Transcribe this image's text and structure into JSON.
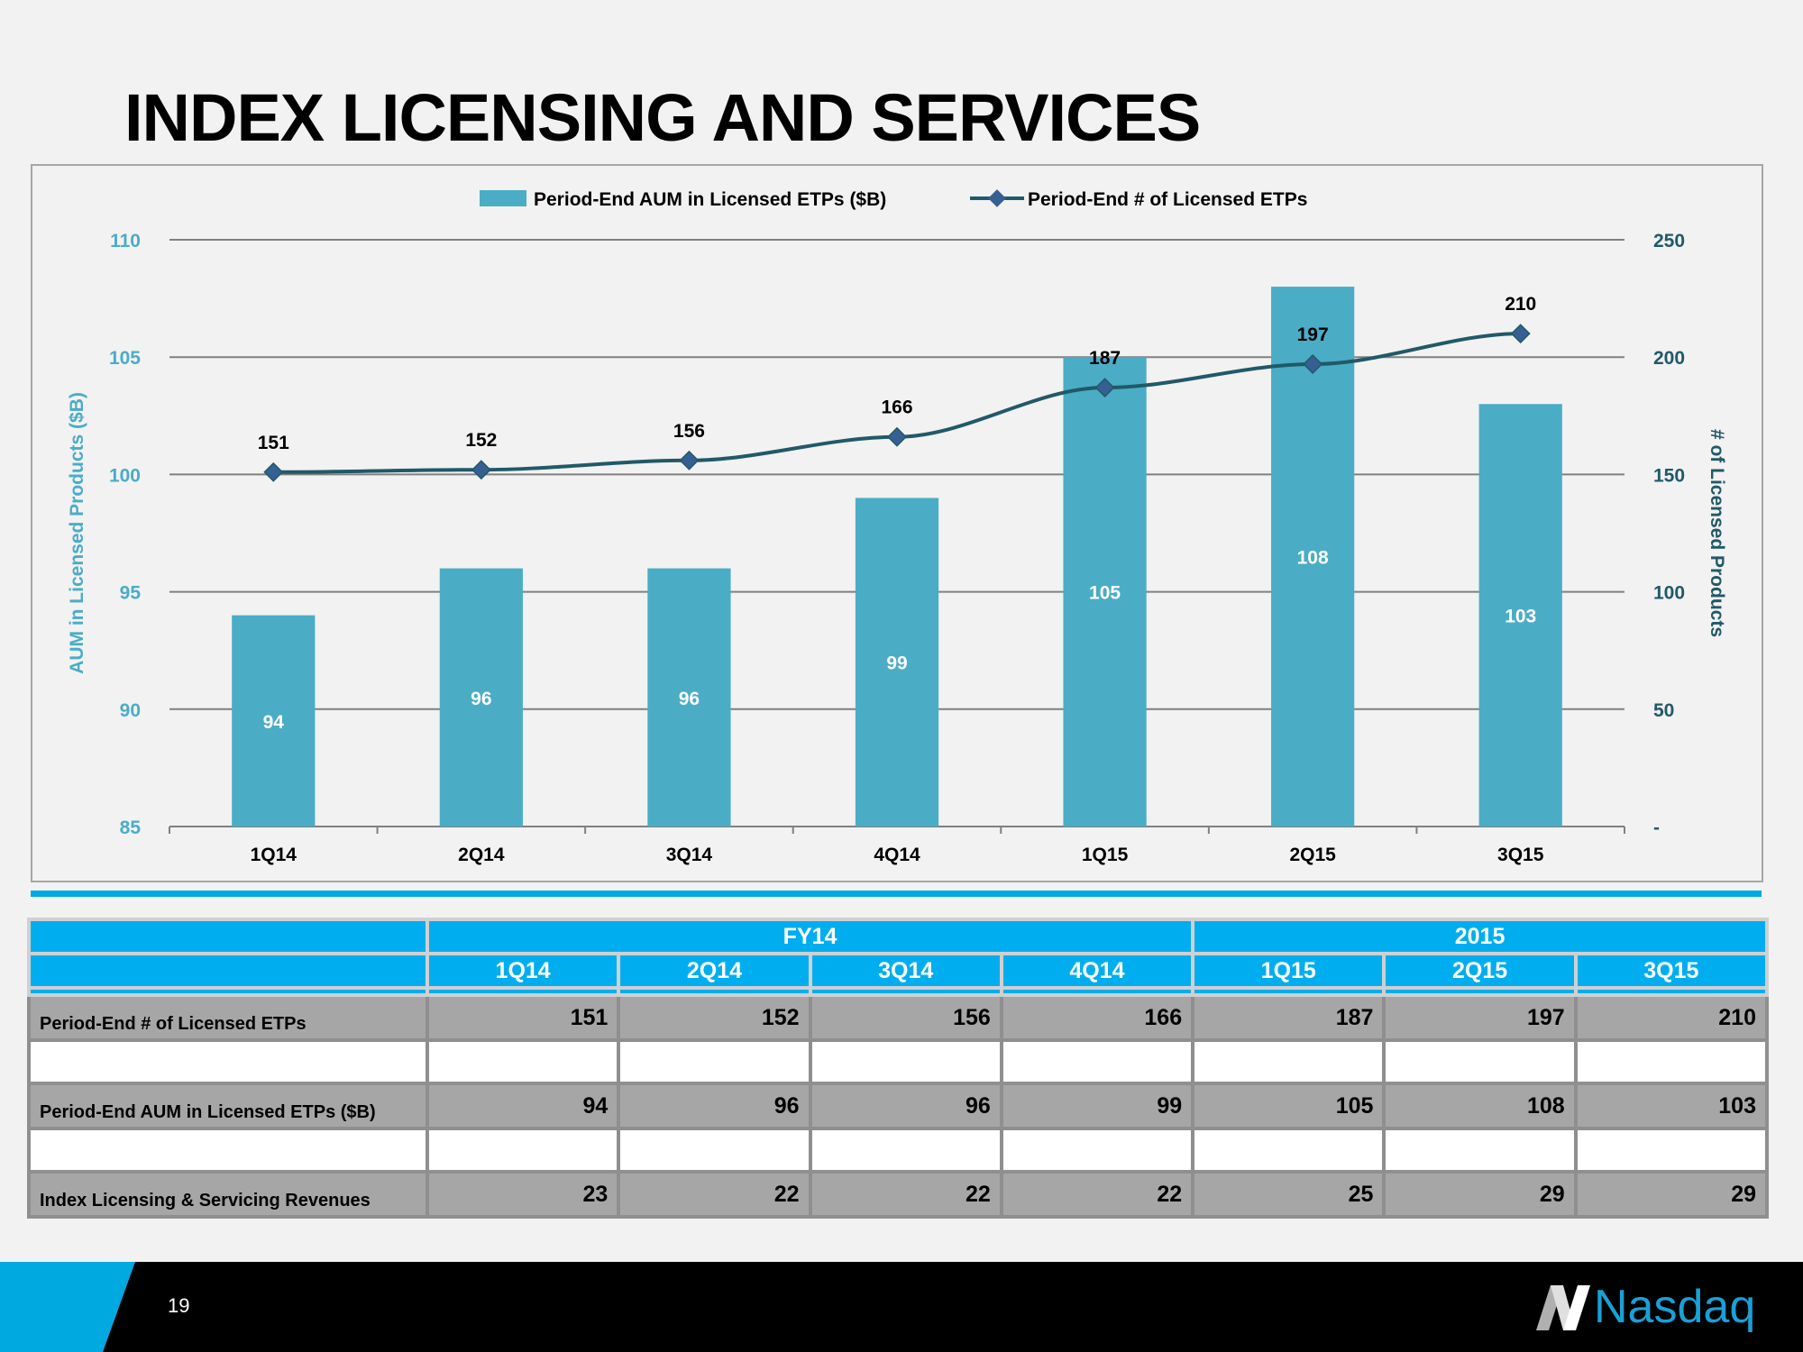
{
  "page": {
    "title": "INDEX LICENSING AND SERVICES",
    "page_number": "19",
    "logo_text": "Nasdaq"
  },
  "colors": {
    "bar": "#4bacc6",
    "line": "#215968",
    "marker": "#366092",
    "left_axis": "#4bacc6",
    "right_axis": "#215968",
    "table_header": "#00aeef",
    "table_row": "#a6a6a6",
    "accent": "#00a9e0"
  },
  "chart_data": {
    "type": "bar",
    "categories": [
      "1Q14",
      "2Q14",
      "3Q14",
      "4Q14",
      "1Q15",
      "2Q15",
      "3Q15"
    ],
    "series": [
      {
        "name": "Period-End AUM in Licensed ETPs ($B)",
        "type": "bar",
        "axis": "left",
        "values": [
          94,
          96,
          96,
          99,
          105,
          108,
          103
        ]
      },
      {
        "name": "Period-End # of Licensed ETPs",
        "type": "line",
        "axis": "right",
        "values": [
          151,
          152,
          156,
          166,
          187,
          197,
          210
        ]
      }
    ],
    "ylabel": "AUM in Licensed Products ($B)",
    "y2label": "# of Licensed Products",
    "ylim": [
      85,
      110
    ],
    "y2lim": [
      0,
      250
    ],
    "yticks": [
      "85",
      "90",
      "95",
      "100",
      "105",
      "110"
    ],
    "y2ticks": [
      "-",
      "50",
      "100",
      "150",
      "200",
      "250"
    ],
    "grid": true,
    "legend": "top"
  },
  "table": {
    "groups": [
      {
        "label": "FY14"
      },
      {
        "label": "2015"
      }
    ],
    "columns": [
      "1Q14",
      "2Q14",
      "3Q14",
      "4Q14",
      "1Q15",
      "2Q15",
      "3Q15"
    ],
    "rows": [
      {
        "label": "Period-End # of Licensed ETPs",
        "values": [
          "151",
          "152",
          "156",
          "166",
          "187",
          "197",
          "210"
        ]
      },
      {
        "label": "Period-End AUM in Licensed ETPs ($B)",
        "values": [
          "94",
          "96",
          "96",
          "99",
          "105",
          "108",
          "103"
        ]
      },
      {
        "label": "Index Licensing & Servicing Revenues",
        "values": [
          "23",
          "22",
          "22",
          "22",
          "25",
          "29",
          "29"
        ]
      }
    ]
  }
}
